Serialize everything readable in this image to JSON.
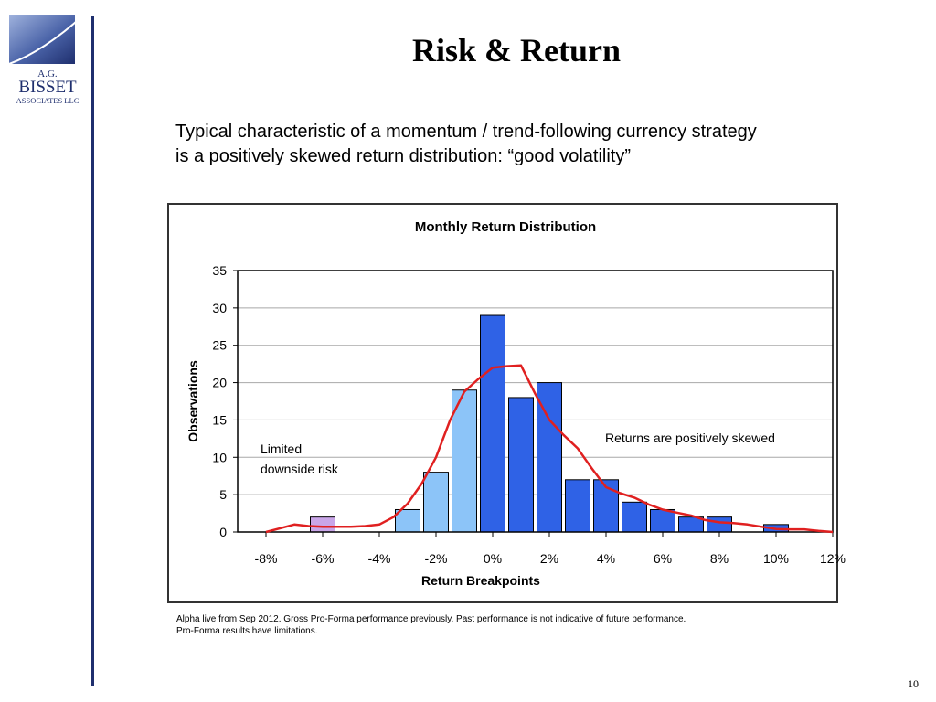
{
  "logo": {
    "ag": "A.G.",
    "name": "BISSET",
    "sub": "ASSOCIATES LLC",
    "colors": {
      "dark": "#1f2f6e",
      "light": "#9fb2dd"
    }
  },
  "slide": {
    "title": "Risk & Return",
    "subtitle_line1": "Typical characteristic of a momentum / trend-following currency strategy",
    "subtitle_line2": "is a positively skewed return distribution: “good volatility”",
    "footnote_line1": "Alpha live from Sep 2012. Gross Pro-Forma performance previously.  Past performance is not indicative of future performance.",
    "footnote_line2": "Pro-Forma results have limitations.",
    "page_number": "10"
  },
  "chart_data": {
    "type": "bar",
    "title": "Monthly Return Distribution",
    "xlabel": "Return Breakpoints",
    "ylabel": "Observations",
    "ylim": [
      0,
      35
    ],
    "yticks": [
      "0",
      "5",
      "10",
      "15",
      "20",
      "25",
      "30",
      "35"
    ],
    "xtick_labels": [
      "-8%",
      "-6%",
      "-4%",
      "-2%",
      "0%",
      "2%",
      "4%",
      "6%",
      "8%",
      "10%",
      "12%"
    ],
    "bin_centers": [
      -6,
      -3,
      -2,
      -1,
      0,
      1,
      2,
      3,
      4,
      5,
      6,
      7,
      8,
      10
    ],
    "values": [
      2,
      3,
      8,
      19,
      29,
      18,
      20,
      7,
      7,
      4,
      3,
      2,
      2,
      1
    ],
    "bar_colors": [
      "#c9a6e8",
      "#8cc4f8",
      "#8cc4f8",
      "#8cc4f8",
      "#2f62e6",
      "#2f62e6",
      "#2f62e6",
      "#2f62e6",
      "#2f62e6",
      "#2f62e6",
      "#2f62e6",
      "#2f62e6",
      "#2f62e6",
      "#2f62e6"
    ],
    "smooth_curve": {
      "color": "#e02020",
      "x": [
        -8,
        -7.5,
        -7,
        -6.5,
        -6,
        -5.5,
        -5,
        -4.5,
        -4,
        -3.5,
        -3,
        -2.5,
        -2,
        -1.5,
        -1,
        -0.5,
        0,
        0.5,
        1,
        1.5,
        2,
        2.5,
        3,
        3.5,
        4,
        4.5,
        5,
        5.5,
        6,
        6.5,
        7,
        7.5,
        8,
        8.5,
        9,
        9.5,
        10,
        10.5,
        11,
        11.5,
        12
      ],
      "y": [
        0,
        0.5,
        1,
        0.8,
        0.7,
        0.7,
        0.7,
        0.8,
        1,
        2,
        3.8,
        6.5,
        10,
        15,
        18.8,
        20.5,
        22,
        22.2,
        22.3,
        18.5,
        15,
        13,
        11.2,
        8.5,
        6,
        5.2,
        4.6,
        3.7,
        3,
        2.6,
        2.2,
        1.6,
        1.3,
        1.2,
        1,
        0.7,
        0.4,
        0.35,
        0.35,
        0.15,
        0
      ]
    },
    "annotations": {
      "left_line1": "Limited",
      "left_line2": "downside risk",
      "right": "Returns are positively skewed"
    },
    "grid": true,
    "legend": false
  }
}
